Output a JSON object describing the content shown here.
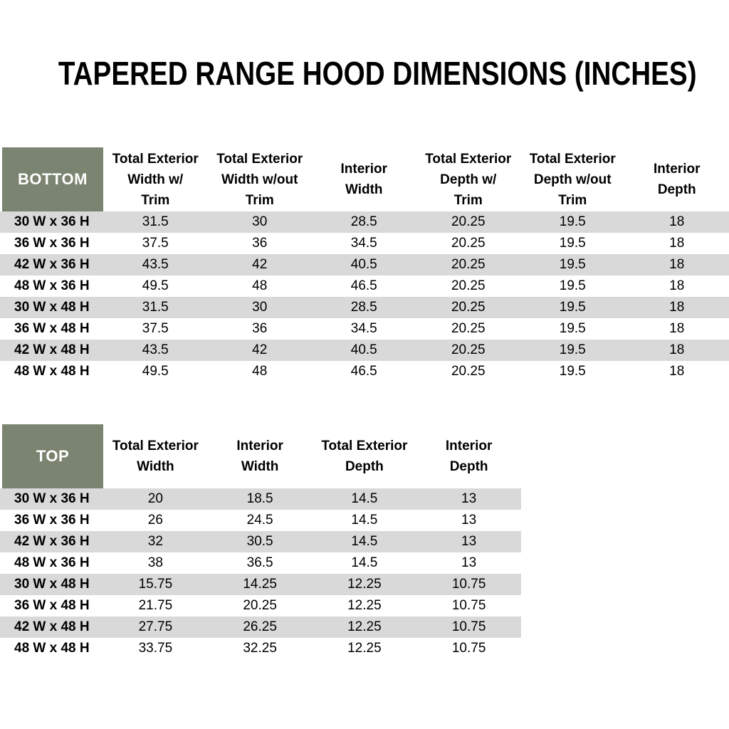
{
  "title": "TAPERED RANGE HOOD DIMENSIONS (INCHES)",
  "colors": {
    "header_green": "#7A8470",
    "stripe_gray": "#D9D9D9",
    "header_text": "#FFFFFF",
    "body_text": "#000000"
  },
  "tables": [
    {
      "id": "bottom",
      "label": "BOTTOM",
      "headers": [
        "Total Exterior\nWidth w/\nTrim",
        "Total Exterior\nWidth w/out\nTrim",
        "Interior\nWidth",
        "Total Exterior\nDepth w/\nTrim",
        "Total Exterior\nDepth w/out\nTrim",
        "Interior\nDepth"
      ],
      "rows": [
        {
          "label": "30 W x 36 H",
          "values": [
            "31.5",
            "30",
            "28.5",
            "20.25",
            "19.5",
            "18"
          ]
        },
        {
          "label": "36 W x 36 H",
          "values": [
            "37.5",
            "36",
            "34.5",
            "20.25",
            "19.5",
            "18"
          ]
        },
        {
          "label": "42 W x 36 H",
          "values": [
            "43.5",
            "42",
            "40.5",
            "20.25",
            "19.5",
            "18"
          ]
        },
        {
          "label": "48 W x 36 H",
          "values": [
            "49.5",
            "48",
            "46.5",
            "20.25",
            "19.5",
            "18"
          ]
        },
        {
          "label": "30 W x 48 H",
          "values": [
            "31.5",
            "30",
            "28.5",
            "20.25",
            "19.5",
            "18"
          ]
        },
        {
          "label": "36 W x 48 H",
          "values": [
            "37.5",
            "36",
            "34.5",
            "20.25",
            "19.5",
            "18"
          ]
        },
        {
          "label": "42 W x 48 H",
          "values": [
            "43.5",
            "42",
            "40.5",
            "20.25",
            "19.5",
            "18"
          ]
        },
        {
          "label": "48 W x 48 H",
          "values": [
            "49.5",
            "48",
            "46.5",
            "20.25",
            "19.5",
            "18"
          ]
        }
      ]
    },
    {
      "id": "top",
      "label": "TOP",
      "headers": [
        "Total Exterior\nWidth",
        "Interior\nWidth",
        "Total Exterior\nDepth",
        "Interior\nDepth"
      ],
      "rows": [
        {
          "label": "30 W x 36 H",
          "values": [
            "20",
            "18.5",
            "14.5",
            "13"
          ]
        },
        {
          "label": "36 W x 36 H",
          "values": [
            "26",
            "24.5",
            "14.5",
            "13"
          ]
        },
        {
          "label": "42 W x 36 H",
          "values": [
            "32",
            "30.5",
            "14.5",
            "13"
          ]
        },
        {
          "label": "48 W x 36 H",
          "values": [
            "38",
            "36.5",
            "14.5",
            "13"
          ]
        },
        {
          "label": "30 W x 48 H",
          "values": [
            "15.75",
            "14.25",
            "12.25",
            "10.75"
          ]
        },
        {
          "label": "36 W x 48 H",
          "values": [
            "21.75",
            "20.25",
            "12.25",
            "10.75"
          ]
        },
        {
          "label": "42 W x 48 H",
          "values": [
            "27.75",
            "26.25",
            "12.25",
            "10.75"
          ]
        },
        {
          "label": "48 W x 48 H",
          "values": [
            "33.75",
            "32.25",
            "12.25",
            "10.75"
          ]
        }
      ]
    }
  ]
}
